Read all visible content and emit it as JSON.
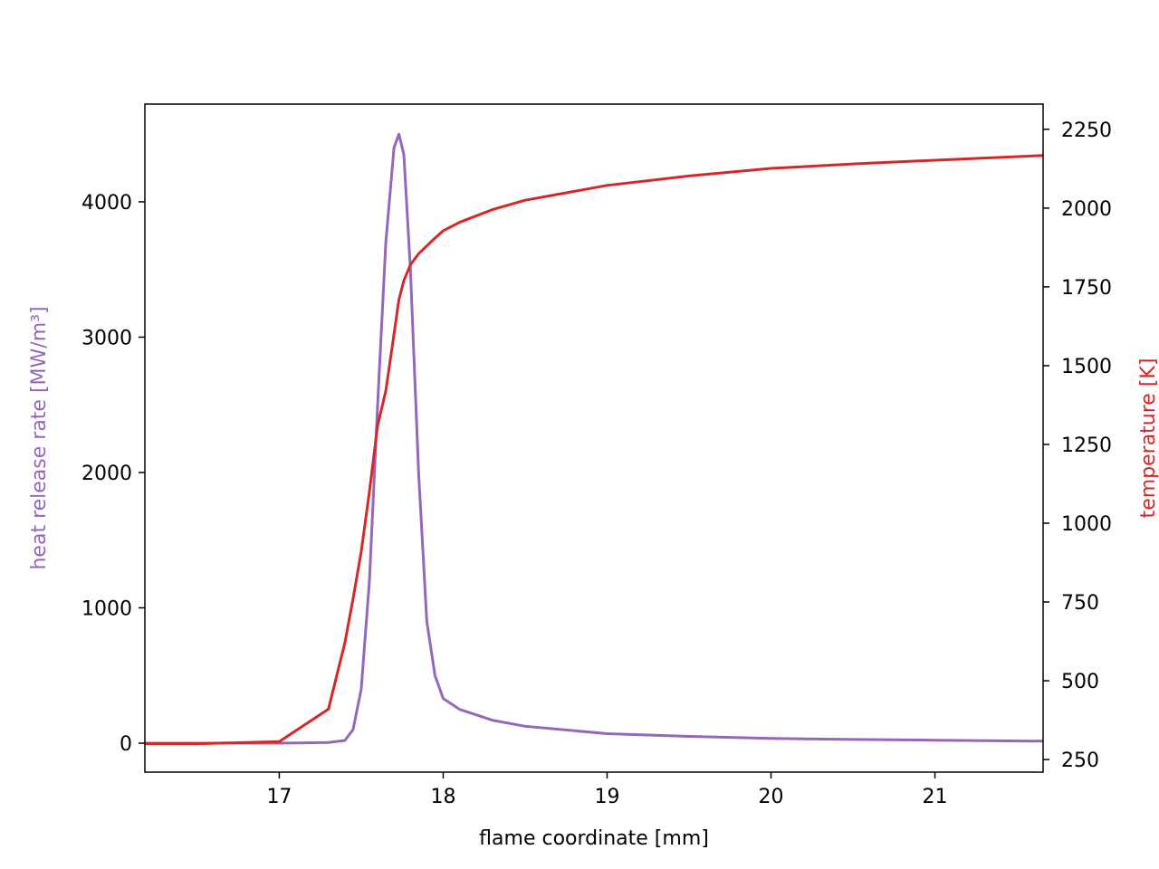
{
  "chart_data": {
    "type": "line",
    "xlabel": "flame coordinate [mm]",
    "ylabel": "heat release rate [MW/m³]",
    "y2label": "temperature [K]",
    "x": [
      16.18,
      16.5,
      17.0,
      17.3,
      17.4,
      17.45,
      17.5,
      17.55,
      17.6,
      17.65,
      17.7,
      17.73,
      17.76,
      17.8,
      17.85,
      17.9,
      17.95,
      18.0,
      18.1,
      18.3,
      18.5,
      19.0,
      19.5,
      20.0,
      20.5,
      21.0,
      21.66
    ],
    "series": [
      {
        "name": "heat release rate",
        "color": "#9467bd",
        "axis": "y",
        "values": [
          0,
          0,
          0,
          5,
          20,
          100,
          400,
          1200,
          2500,
          3700,
          4400,
          4500,
          4350,
          3500,
          2000,
          900,
          500,
          330,
          250,
          170,
          125,
          70,
          50,
          35,
          28,
          22,
          15
        ]
      },
      {
        "name": "temperature",
        "color": "#d62728",
        "axis": "y2",
        "values": [
          300,
          300,
          307,
          410,
          620,
          760,
          910,
          1100,
          1310,
          1420,
          1600,
          1710,
          1770,
          1820,
          1855,
          1880,
          1905,
          1928,
          1955,
          1995,
          2025,
          2072,
          2102,
          2126,
          2140,
          2152,
          2167
        ]
      }
    ],
    "xlim": [
      16.18,
      21.66
    ],
    "xticks": [
      17,
      18,
      19,
      20,
      21
    ],
    "ylim": [
      -214,
      4722
    ],
    "yticks": [
      0,
      1000,
      2000,
      3000,
      4000
    ],
    "y2lim": [
      210,
      2330
    ],
    "y2ticks": [
      250,
      500,
      750,
      1000,
      1250,
      1500,
      1750,
      2000,
      2250
    ],
    "grid": false
  }
}
